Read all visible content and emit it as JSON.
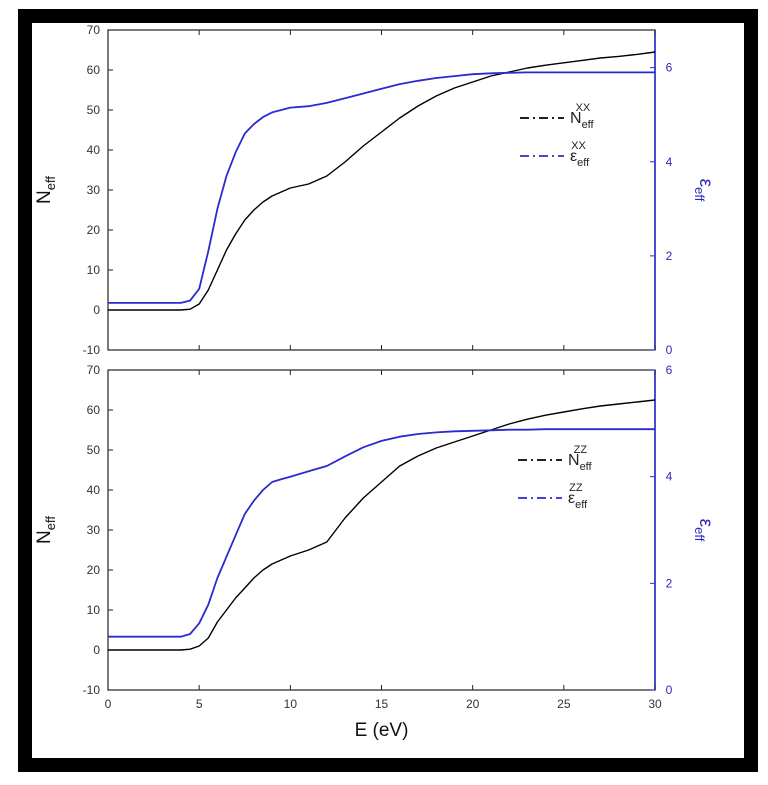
{
  "chart_data": [
    {
      "type": "line",
      "panel": "top",
      "xlabel": "",
      "ylabel": "N",
      "ylabel_sub": "eff",
      "y2label": "ε",
      "y2label_sub": "eff",
      "xlim": [
        0,
        30
      ],
      "ylim": [
        -10,
        70
      ],
      "y2lim": [
        0,
        6.8
      ],
      "x_ticks": [
        0,
        5,
        10,
        15,
        20,
        25,
        30
      ],
      "y_ticks": [
        -10,
        0,
        10,
        20,
        30,
        40,
        50,
        60,
        70
      ],
      "y2_ticks": [
        0,
        2,
        4,
        6
      ],
      "grid": false,
      "legend_position": "center-right",
      "series": [
        {
          "name": "N",
          "name_sub": "eff",
          "name_sup": "XX",
          "axis": "left",
          "color": "#000000",
          "x": [
            0,
            4,
            4.5,
            5,
            5.5,
            6,
            6.5,
            7,
            7.5,
            8,
            8.5,
            9,
            9.5,
            10,
            11,
            12,
            13,
            14,
            15,
            16,
            17,
            18,
            19,
            20,
            21,
            22,
            23,
            24,
            25,
            26,
            27,
            28,
            29,
            30
          ],
          "y": [
            0,
            0,
            0.2,
            1.5,
            5,
            10,
            15,
            19,
            22.5,
            25,
            27,
            28.5,
            29.5,
            30.5,
            31.5,
            33.5,
            37,
            41,
            44.5,
            48,
            51,
            53.5,
            55.5,
            57,
            58.5,
            59.5,
            60.5,
            61.2,
            61.8,
            62.4,
            63,
            63.4,
            63.9,
            64.5
          ]
        },
        {
          "name": "ε",
          "name_sub": "eff",
          "name_sup": "XX",
          "axis": "right",
          "color": "#2a2ad0",
          "x": [
            0,
            4,
            4.5,
            5,
            5.5,
            6,
            6.5,
            7,
            7.5,
            8,
            8.5,
            9,
            9.5,
            10,
            11,
            12,
            13,
            14,
            15,
            16,
            17,
            18,
            19,
            20,
            21,
            22,
            23,
            24,
            25,
            26,
            27,
            28,
            29,
            30
          ],
          "y": [
            1,
            1,
            1.05,
            1.3,
            2.1,
            3.0,
            3.7,
            4.2,
            4.6,
            4.8,
            4.95,
            5.05,
            5.1,
            5.15,
            5.18,
            5.25,
            5.35,
            5.45,
            5.55,
            5.65,
            5.72,
            5.78,
            5.82,
            5.86,
            5.88,
            5.89,
            5.9,
            5.9,
            5.9,
            5.9,
            5.9,
            5.9,
            5.9,
            5.9
          ]
        }
      ]
    },
    {
      "type": "line",
      "panel": "bottom",
      "xlabel": "E (eV)",
      "ylabel": "N",
      "ylabel_sub": "eff",
      "y2label": "ε",
      "y2label_sub": "eff",
      "xlim": [
        0,
        30
      ],
      "ylim": [
        -10,
        70
      ],
      "y2lim": [
        0,
        6
      ],
      "x_ticks": [
        0,
        5,
        10,
        15,
        20,
        25,
        30
      ],
      "y_ticks": [
        -10,
        0,
        10,
        20,
        30,
        40,
        50,
        60,
        70
      ],
      "y2_ticks": [
        0,
        2,
        4,
        6
      ],
      "grid": false,
      "legend_position": "center-right",
      "series": [
        {
          "name": "N",
          "name_sub": "eff",
          "name_sup": "ZZ",
          "axis": "left",
          "color": "#000000",
          "x": [
            0,
            4,
            4.5,
            5,
            5.5,
            6,
            6.5,
            7,
            7.5,
            8,
            8.5,
            9,
            9.5,
            10,
            11,
            12,
            13,
            14,
            15,
            16,
            17,
            18,
            19,
            20,
            21,
            22,
            23,
            24,
            25,
            26,
            27,
            28,
            29,
            30
          ],
          "y": [
            0,
            0,
            0.2,
            1,
            3,
            7,
            10,
            13,
            15.5,
            18,
            20,
            21.5,
            22.5,
            23.5,
            25,
            27,
            33,
            38,
            42,
            46,
            48.5,
            50.5,
            52,
            53.5,
            55,
            56.5,
            57.7,
            58.7,
            59.5,
            60.3,
            61,
            61.5,
            62,
            62.5
          ]
        },
        {
          "name": "ε",
          "name_sub": "eff",
          "name_sup": "ZZ",
          "axis": "right",
          "color": "#2a2ad0",
          "x": [
            0,
            4,
            4.5,
            5,
            5.5,
            6,
            6.5,
            7,
            7.5,
            8,
            8.5,
            9,
            9.5,
            10,
            11,
            12,
            13,
            14,
            15,
            16,
            17,
            18,
            19,
            20,
            21,
            22,
            23,
            24,
            25,
            26,
            27,
            28,
            29,
            30
          ],
          "y": [
            1,
            1,
            1.05,
            1.25,
            1.6,
            2.1,
            2.5,
            2.9,
            3.3,
            3.55,
            3.75,
            3.9,
            3.95,
            4.0,
            4.1,
            4.2,
            4.38,
            4.55,
            4.67,
            4.75,
            4.8,
            4.83,
            4.85,
            4.86,
            4.87,
            4.88,
            4.88,
            4.89,
            4.89,
            4.89,
            4.89,
            4.89,
            4.89,
            4.89
          ]
        }
      ]
    }
  ]
}
